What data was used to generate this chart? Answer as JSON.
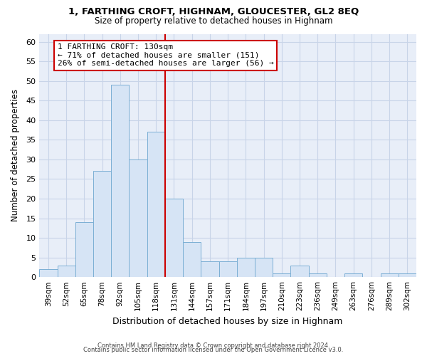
{
  "title": "1, FARTHING CROFT, HIGHNAM, GLOUCESTER, GL2 8EQ",
  "subtitle": "Size of property relative to detached houses in Highnam",
  "xlabel": "Distribution of detached houses by size in Highnam",
  "ylabel": "Number of detached properties",
  "bar_labels": [
    "39sqm",
    "52sqm",
    "65sqm",
    "78sqm",
    "92sqm",
    "105sqm",
    "118sqm",
    "131sqm",
    "144sqm",
    "157sqm",
    "171sqm",
    "184sqm",
    "197sqm",
    "210sqm",
    "223sqm",
    "236sqm",
    "249sqm",
    "263sqm",
    "276sqm",
    "289sqm",
    "302sqm"
  ],
  "bar_values": [
    2,
    3,
    14,
    27,
    49,
    30,
    37,
    20,
    9,
    4,
    4,
    5,
    5,
    1,
    3,
    1,
    0,
    1,
    0,
    1,
    1
  ],
  "bar_color": "#d6e4f5",
  "bar_edge_color": "#7bafd4",
  "vline_index": 7,
  "vline_color": "#cc0000",
  "annotation_title": "1 FARTHING CROFT: 130sqm",
  "annotation_line1": "← 71% of detached houses are smaller (151)",
  "annotation_line2": "26% of semi-detached houses are larger (56) →",
  "annotation_box_edge": "#cc0000",
  "ylim_max": 62,
  "yticks": [
    0,
    5,
    10,
    15,
    20,
    25,
    30,
    35,
    40,
    45,
    50,
    55,
    60
  ],
  "footer1": "Contains HM Land Registry data © Crown copyright and database right 2024.",
  "footer2": "Contains public sector information licensed under the Open Government Licence v3.0.",
  "bg_color": "#ffffff",
  "plot_bg_color": "#e8eef8",
  "grid_color": "#c8d4e8"
}
